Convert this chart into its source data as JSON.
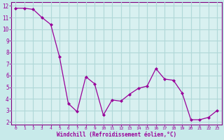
{
  "x": [
    0,
    1,
    2,
    3,
    4,
    5,
    6,
    7,
    8,
    9,
    10,
    11,
    12,
    13,
    14,
    15,
    16,
    17,
    18,
    19,
    20,
    21,
    22,
    23
  ],
  "y": [
    11.8,
    11.8,
    11.7,
    11.0,
    10.4,
    7.6,
    3.6,
    2.9,
    5.9,
    5.3,
    2.6,
    3.9,
    3.8,
    4.4,
    4.9,
    5.1,
    6.6,
    5.7,
    5.6,
    4.5,
    2.2,
    2.2,
    2.4,
    3.0
  ],
  "line_color": "#990099",
  "marker_color": "#990099",
  "bg_color": "#c8eaea",
  "grid_color": "#b0d8d8",
  "plot_bg": "#d8f0f0",
  "xlabel": "Windchill (Refroidissement éolien,°C)",
  "ylim_min": 1.8,
  "ylim_max": 12.3,
  "xlim_min": -0.5,
  "xlim_max": 23.5,
  "yticks": [
    2,
    3,
    4,
    5,
    6,
    7,
    8,
    9,
    10,
    11,
    12
  ],
  "xticks": [
    0,
    1,
    2,
    3,
    4,
    5,
    6,
    7,
    8,
    9,
    10,
    11,
    12,
    13,
    14,
    15,
    16,
    17,
    18,
    19,
    20,
    21,
    22,
    23
  ],
  "label_color": "#990099",
  "tick_color": "#990099",
  "spine_color": "#800080"
}
